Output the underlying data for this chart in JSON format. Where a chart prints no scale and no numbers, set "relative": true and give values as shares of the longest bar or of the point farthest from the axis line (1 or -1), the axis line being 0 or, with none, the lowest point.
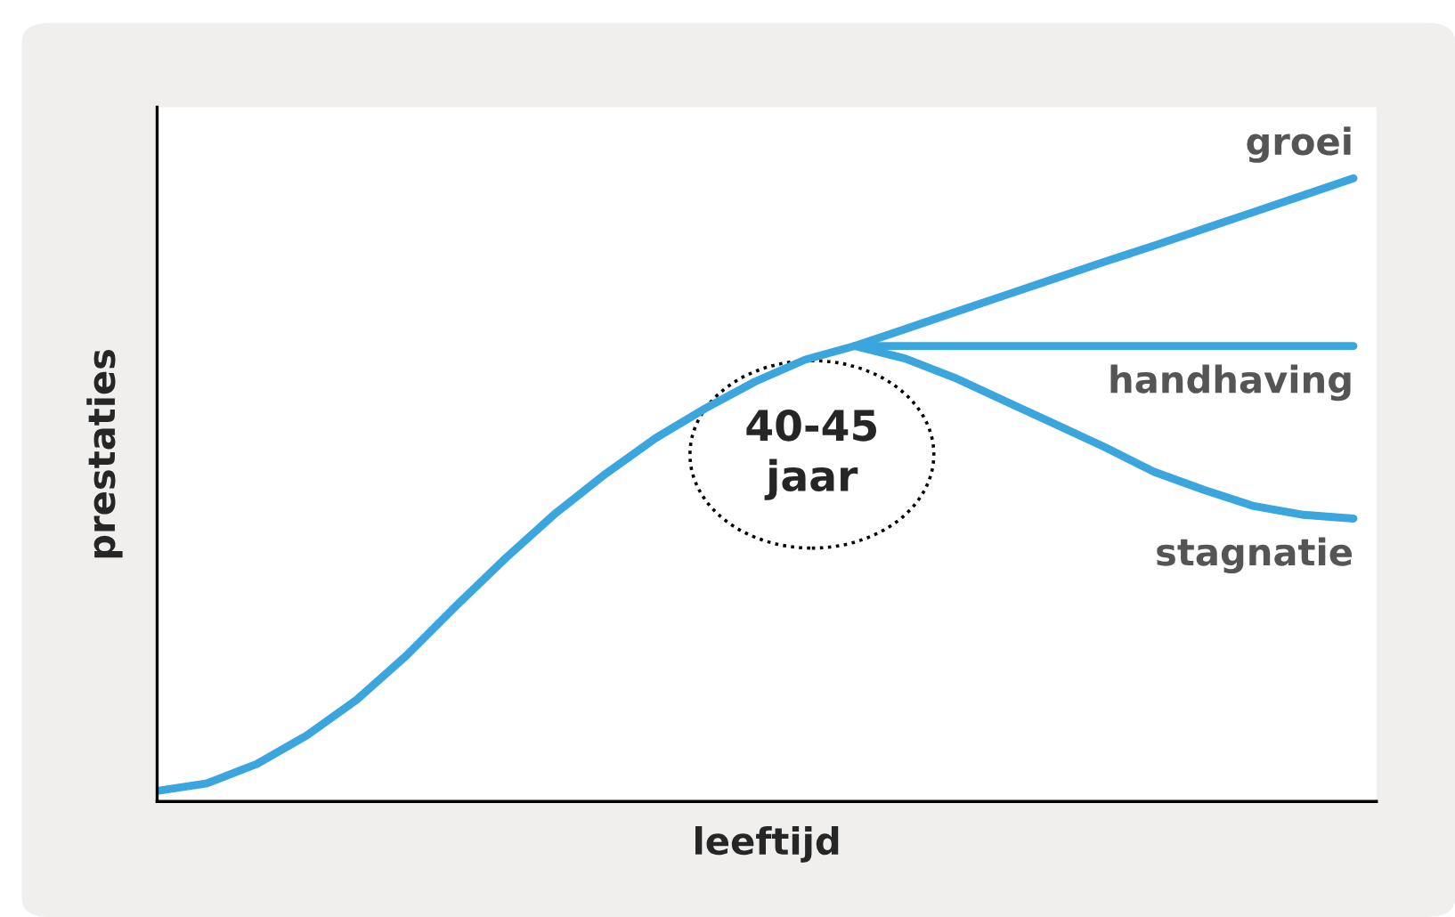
{
  "chart_data": {
    "type": "line",
    "relative": true,
    "xlabel": "leeftijd",
    "ylabel": "prestaties",
    "tick_labels": false,
    "legend": false,
    "marker": "none",
    "line_style": "solid",
    "annotations": [
      "40-45\njaar"
    ],
    "categories": [
      null,
      null,
      null,
      null,
      null,
      null,
      null,
      null,
      null,
      null,
      null,
      null,
      null,
      null,
      null,
      null,
      null,
      null,
      null,
      null,
      null,
      null,
      null,
      null,
      null
    ],
    "series": [
      {
        "name": "groei",
        "color": "#3aa6dd",
        "values": [
          null,
          null,
          null,
          null,
          null,
          null,
          null,
          null,
          null,
          null,
          null,
          null,
          null,
          null,
          0.731,
          0.758,
          0.785,
          0.812,
          0.839,
          0.866,
          0.892,
          0.919,
          0.946,
          0.973,
          1.0
        ]
      },
      {
        "name": "handhaving",
        "color": "#3aa6dd",
        "values": [
          0.017,
          0.029,
          0.06,
          0.106,
          0.163,
          0.234,
          0.314,
          0.391,
          0.463,
          0.526,
          0.583,
          0.631,
          0.674,
          0.709,
          0.731,
          0.731,
          0.731,
          0.731,
          0.731,
          0.731,
          0.731,
          0.731,
          0.731,
          0.731,
          0.731
        ]
      },
      {
        "name": "stagnatie",
        "color": "#3aa6dd",
        "values": [
          null,
          null,
          null,
          null,
          null,
          null,
          null,
          null,
          null,
          null,
          null,
          null,
          null,
          null,
          0.731,
          0.711,
          0.68,
          0.643,
          0.606,
          0.569,
          0.529,
          0.5,
          0.474,
          0.46,
          0.454
        ]
      }
    ]
  }
}
